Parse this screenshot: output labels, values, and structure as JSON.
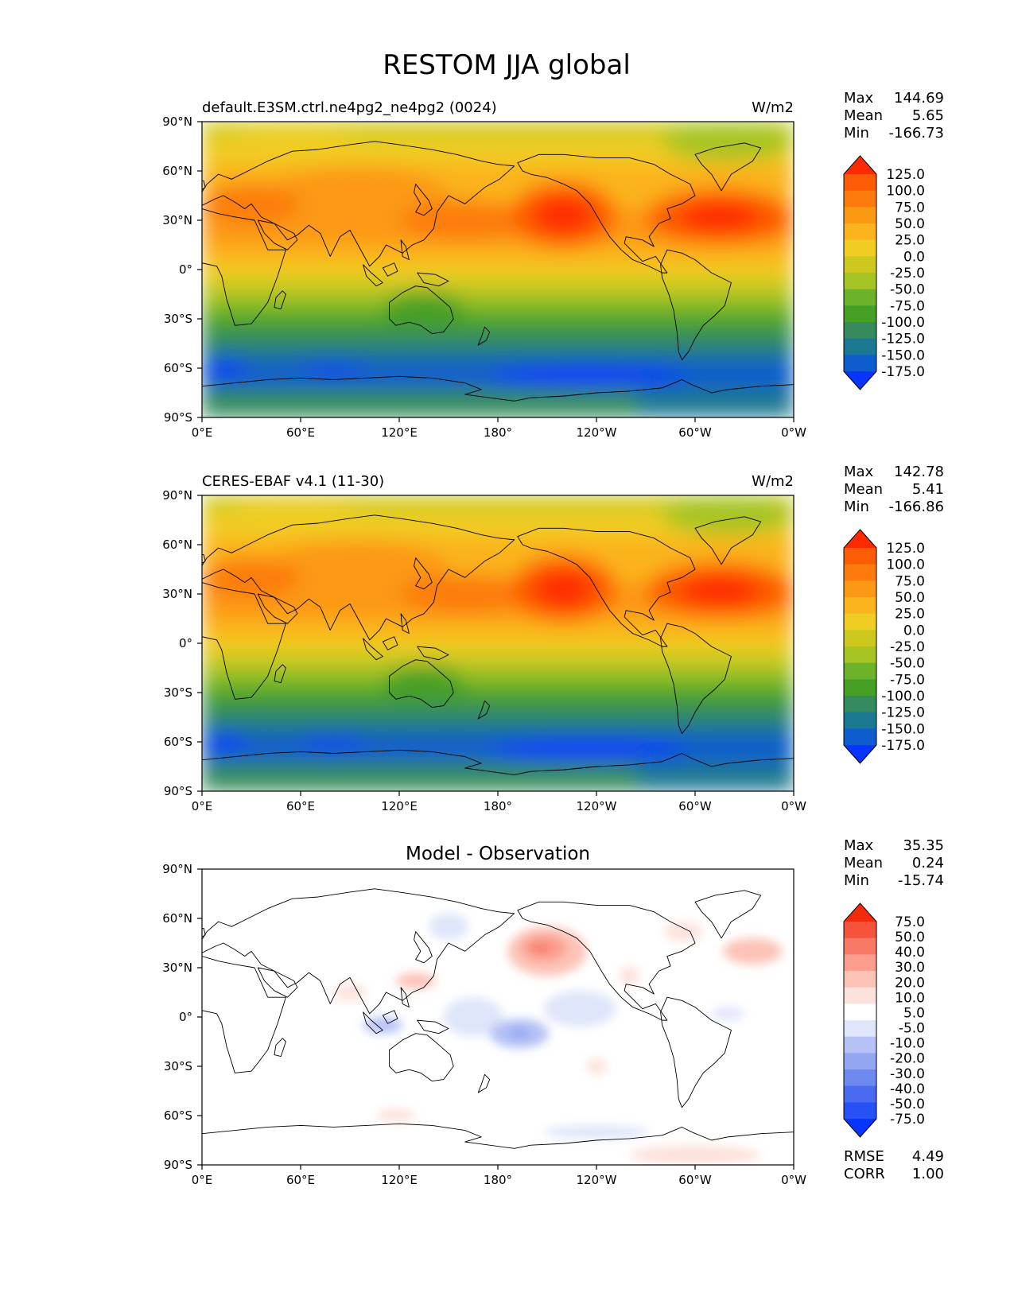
{
  "title": "RESTOM JJA global",
  "colors": {
    "main_levels": [
      "#0734ff",
      "#0f5ccf",
      "#1a7890",
      "#358b5d",
      "#46a026",
      "#6db32a",
      "#a6c424",
      "#cdc81d",
      "#f0cd23",
      "#fbb41d",
      "#fc9914",
      "#fc7b0c",
      "#fd5c06",
      "#ff2a00"
    ],
    "diff_levels": [
      "#0734ff",
      "#2850f7",
      "#4a6bef",
      "#6d88ef",
      "#92a6f2",
      "#b6c2f5",
      "#dfe5fa",
      "#ffffff",
      "#fde2dc",
      "#fcc3b7",
      "#fb9e8e",
      "#f87a66",
      "#f5543b",
      "#f52a0c"
    ],
    "land_outline": "#000000"
  },
  "chart_data": [
    {
      "type": "heatmap",
      "panel": "model",
      "title_left": "default.E3SM.ctrl.ne4pg2_ne4pg2 (0024)",
      "title_right": "W/m2",
      "xticks": [
        "0°E",
        "60°E",
        "120°E",
        "180°",
        "120°W",
        "60°W",
        "0°W"
      ],
      "yticks": [
        "90°N",
        "60°N",
        "30°N",
        "0°",
        "30°S",
        "60°S",
        "90°S"
      ],
      "xlim": [
        0,
        360
      ],
      "ylim": [
        -90,
        90
      ],
      "stats": {
        "labels": [
          "Max",
          "Mean",
          "Min"
        ],
        "values": [
          "144.69",
          "5.65",
          "-166.73"
        ]
      },
      "colorbar_levels": [
        "125.0",
        "100.0",
        "75.0",
        "50.0",
        "25.0",
        "0.0",
        "-25.0",
        "-50.0",
        "-75.0",
        "-100.0",
        "-125.0",
        "-150.0",
        "-175.0"
      ],
      "colorbar_extend": "both"
    },
    {
      "type": "heatmap",
      "panel": "observation",
      "title_left": "CERES-EBAF v4.1 (11-30)",
      "title_right": "W/m2",
      "xticks": [
        "0°E",
        "60°E",
        "120°E",
        "180°",
        "120°W",
        "60°W",
        "0°W"
      ],
      "yticks": [
        "90°N",
        "60°N",
        "30°N",
        "0°",
        "30°S",
        "60°S",
        "90°S"
      ],
      "xlim": [
        0,
        360
      ],
      "ylim": [
        -90,
        90
      ],
      "stats": {
        "labels": [
          "Max",
          "Mean",
          "Min"
        ],
        "values": [
          "142.78",
          "5.41",
          "-166.86"
        ]
      },
      "colorbar_levels": [
        "125.0",
        "100.0",
        "75.0",
        "50.0",
        "25.0",
        "0.0",
        "-25.0",
        "-50.0",
        "-75.0",
        "-100.0",
        "-125.0",
        "-150.0",
        "-175.0"
      ],
      "colorbar_extend": "both"
    },
    {
      "type": "heatmap",
      "panel": "difference",
      "title_center": "Model - Observation",
      "xticks": [
        "0°E",
        "60°E",
        "120°E",
        "180°",
        "120°W",
        "60°W",
        "0°W"
      ],
      "yticks": [
        "90°N",
        "60°N",
        "30°N",
        "0°",
        "30°S",
        "60°S",
        "90°S"
      ],
      "xlim": [
        0,
        360
      ],
      "ylim": [
        -90,
        90
      ],
      "stats": {
        "labels": [
          "Max",
          "Mean",
          "Min"
        ],
        "values": [
          "35.35",
          "0.24",
          "-15.74"
        ]
      },
      "colorbar_levels": [
        "75.0",
        "50.0",
        "40.0",
        "30.0",
        "20.0",
        "10.0",
        "5.0",
        "-5.0",
        "-10.0",
        "-20.0",
        "-30.0",
        "-40.0",
        "-50.0",
        "-75.0"
      ],
      "colorbar_extend": "both",
      "extra_stats": {
        "labels": [
          "RMSE",
          "CORR"
        ],
        "values": [
          "4.49",
          "1.00"
        ]
      }
    }
  ]
}
